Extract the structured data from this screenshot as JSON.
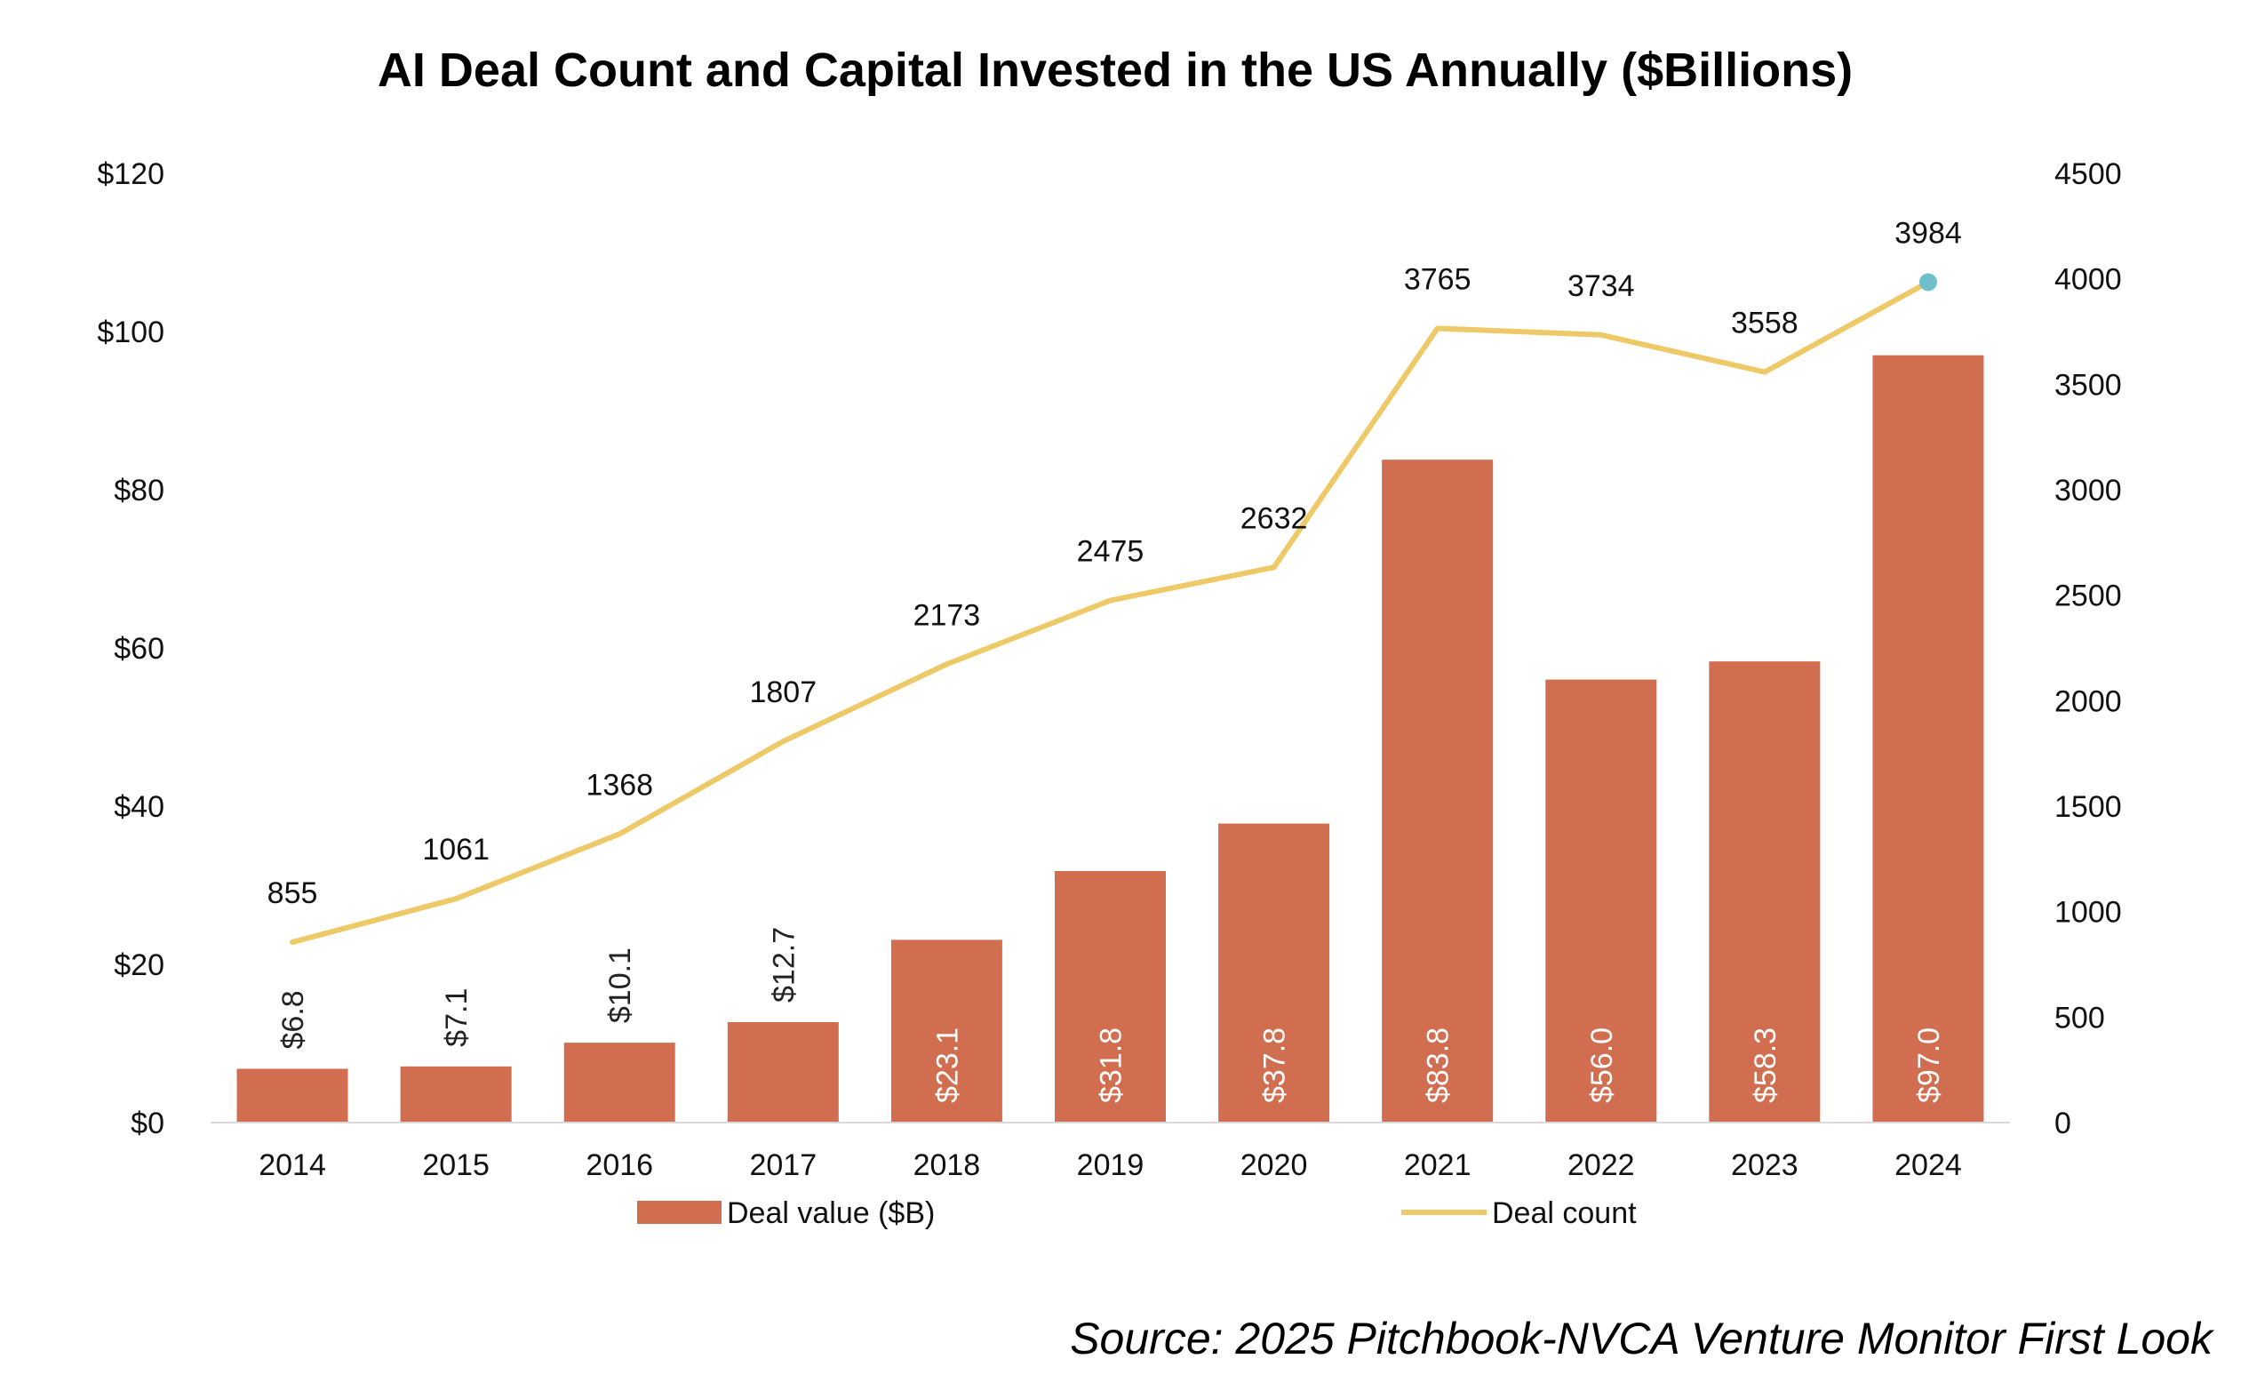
{
  "chart_data": {
    "type": "bar",
    "title": "AI Deal Count and Capital Invested in the US Annually ($Billions)",
    "categories": [
      "2014",
      "2015",
      "2016",
      "2017",
      "2018",
      "2019",
      "2020",
      "2021",
      "2022",
      "2023",
      "2024"
    ],
    "series": [
      {
        "name": "Deal value ($B)",
        "type": "bar",
        "axis": "left",
        "color": "#D16E50",
        "values": [
          6.8,
          7.1,
          10.1,
          12.7,
          23.1,
          31.8,
          37.8,
          83.8,
          56.0,
          58.3,
          97.0
        ],
        "labels": [
          "$6.8",
          "$7.1",
          "$10.1",
          "$12.7",
          "$23.1",
          "$31.8",
          "$37.8",
          "$83.8",
          "$56.0",
          "$58.3",
          "$97.0"
        ]
      },
      {
        "name": "Deal count",
        "type": "line",
        "axis": "right",
        "color": "#EDC967",
        "highlight_color": "#6FBFCB",
        "values": [
          855,
          1061,
          1368,
          1807,
          2173,
          2475,
          2632,
          3765,
          3734,
          3558,
          3984
        ],
        "labels": [
          "855",
          "1061",
          "1368",
          "1807",
          "2173",
          "2475",
          "2632",
          "3765",
          "3734",
          "3558",
          "3984"
        ]
      }
    ],
    "y_left": {
      "min": 0,
      "max": 120,
      "step": 20,
      "tick_labels": [
        "$0",
        "$20",
        "$40",
        "$60",
        "$80",
        "$100",
        "$120"
      ]
    },
    "y_right": {
      "min": 0,
      "max": 4500,
      "step": 500,
      "tick_labels": [
        "0",
        "500",
        "1000",
        "1500",
        "2000",
        "2500",
        "3000",
        "3500",
        "4000",
        "4500"
      ]
    },
    "grid": false,
    "legend": {
      "position": "bottom",
      "items": [
        {
          "label": "Deal value ($B)",
          "symbol": "bar",
          "color": "#D16E50"
        },
        {
          "label": "Deal count",
          "symbol": "line",
          "color": "#EDC967"
        }
      ]
    },
    "source": "Source: 2025 Pitchbook-NVCA Venture Monitor First Look"
  }
}
